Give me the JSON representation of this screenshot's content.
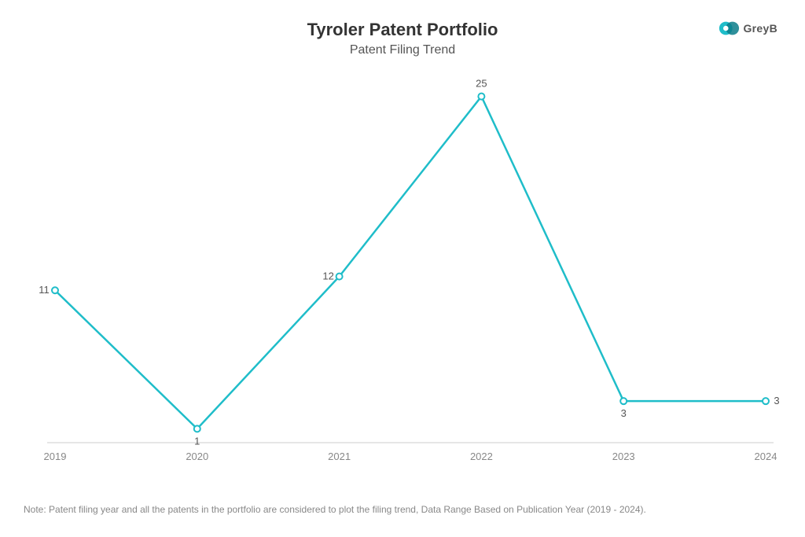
{
  "title": "Tyroler Patent Portfolio",
  "subtitle": "Patent Filing Trend",
  "logo_text": "GreyB",
  "chart": {
    "type": "line",
    "categories": [
      "2019",
      "2020",
      "2021",
      "2022",
      "2023",
      "2024"
    ],
    "values": [
      11,
      1,
      12,
      25,
      3,
      3
    ],
    "line_color": "#1fbdc9",
    "marker_color": "#1fbdc9",
    "marker_fill": "#ffffff",
    "marker_radius": 4,
    "line_width": 2.5,
    "label_color": "#555555",
    "label_fontsize": 13,
    "xlabel_color": "#888888",
    "xlabel_fontsize": 13,
    "baseline_color": "#cccccc",
    "background_color": "#ffffff",
    "ymin": 0,
    "ymax": 26,
    "label_positions": [
      "left",
      "below",
      "left",
      "above",
      "below",
      "right"
    ]
  },
  "footnote": "Note: Patent filing year and all the patents in the portfolio are considered to plot the filing trend, Data Range Based on Publication Year (2019 - 2024).",
  "logo_colors": {
    "primary": "#1fbdc9",
    "accent": "#0a7c8a"
  }
}
